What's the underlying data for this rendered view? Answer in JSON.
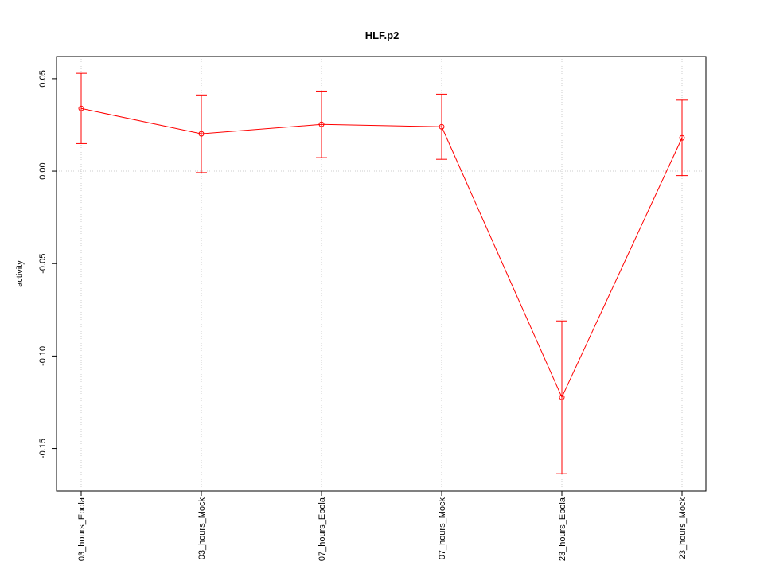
{
  "chart_data": {
    "type": "line",
    "title": "HLF.p2",
    "y_label": "activity",
    "categories": [
      "03_hours_Ebola",
      "03_hours_Mock",
      "07_hours_Ebola",
      "07_hours_Mock",
      "23_hours_Ebola",
      "23_hours_Mock"
    ],
    "series": [
      {
        "color": "#ff0000",
        "values": [
          0.0339,
          0.0202,
          0.0253,
          0.024,
          -0.1223,
          0.018
        ],
        "errors": [
          0.019,
          0.021,
          0.018,
          0.0176,
          0.0413,
          0.0204
        ]
      }
    ],
    "ylim": [
      -0.173,
      0.062
    ],
    "yticks": [
      {
        "value": -0.15,
        "label": "-0.15"
      },
      {
        "value": -0.1,
        "label": "-0.10"
      },
      {
        "value": -0.05,
        "label": "-0.05"
      },
      {
        "value": 0,
        "label": "0.00"
      },
      {
        "value": 0.05,
        "label": "0.05"
      }
    ],
    "grid": true,
    "hline": 0
  }
}
